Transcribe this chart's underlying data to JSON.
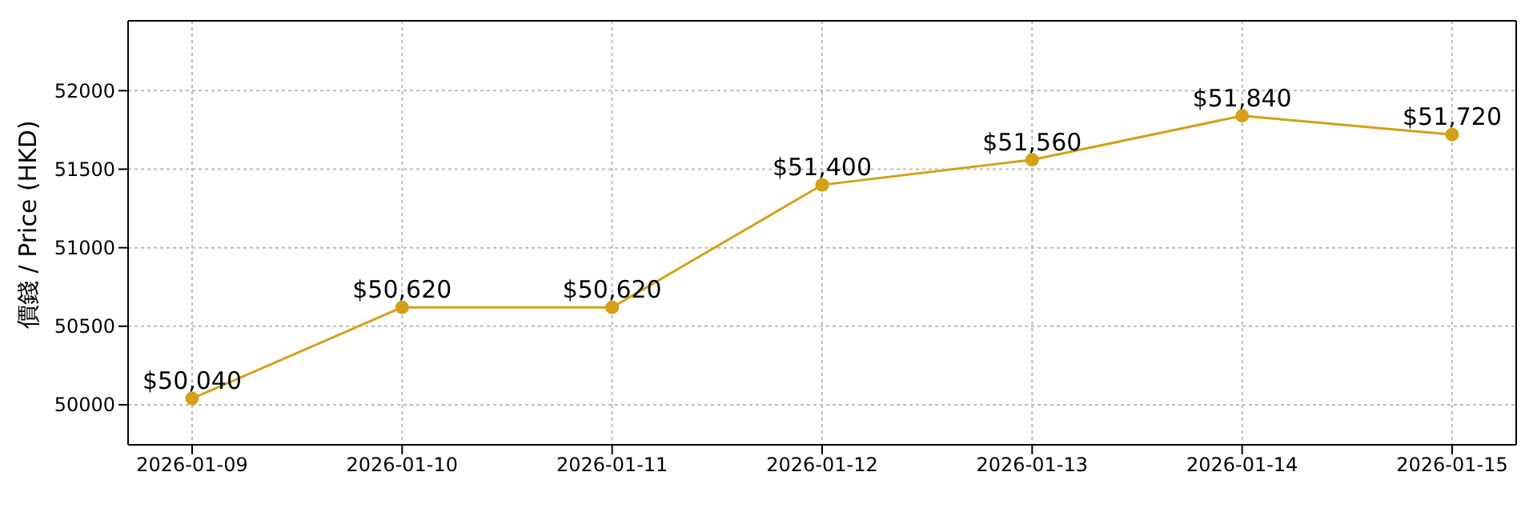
{
  "chart_data": {
    "type": "line",
    "ylabel": "價錢 / Price (HKD)",
    "categories": [
      "2026-01-09",
      "2026-01-10",
      "2026-01-11",
      "2026-01-12",
      "2026-01-13",
      "2026-01-14",
      "2026-01-15"
    ],
    "series": [
      {
        "color": "#d4a017",
        "values": [
          50040,
          50620,
          50620,
          51400,
          51560,
          51840,
          51720
        ],
        "value_labels": [
          "$50,040",
          "$50,620",
          "$50,620",
          "$51,400",
          "$51,560",
          "$51,840",
          "$51,720"
        ]
      }
    ],
    "ylim": [
      49745,
      52445
    ],
    "yticks": [
      50000,
      50500,
      51000,
      51500,
      52000
    ],
    "grid": true,
    "marker": "circle",
    "line_style": "solid"
  }
}
